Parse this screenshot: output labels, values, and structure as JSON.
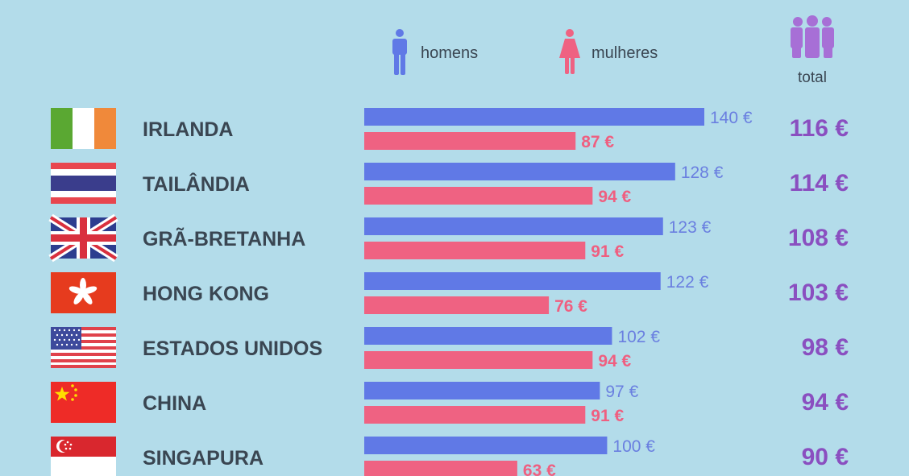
{
  "legend": {
    "men_label": "homens",
    "women_label": "mulheres",
    "total_label": "total",
    "men_icon": "man-icon",
    "women_icon": "woman-icon",
    "total_icon": "group-icon"
  },
  "colors": {
    "men": "#6079e6",
    "women": "#ef6282",
    "total": "#8a4fc0",
    "background": "#b3dcea"
  },
  "chart_data": {
    "type": "bar",
    "categories": [
      "IRLANDA",
      "TAILÂNDIA",
      "GRÃ-BRETANHA",
      "HONG KONG",
      "ESTADOS UNIDOS",
      "CHINA",
      "SINGAPURA"
    ],
    "flags": [
      "ireland-flag-icon",
      "thailand-flag-icon",
      "uk-flag-icon",
      "hong-kong-flag-icon",
      "usa-flag-icon",
      "china-flag-icon",
      "singapore-flag-icon"
    ],
    "series": [
      {
        "name": "homens",
        "values": [
          140,
          128,
          123,
          122,
          102,
          97,
          100
        ],
        "labels": [
          "140 €",
          "128 €",
          "123 €",
          "122 €",
          "102 €",
          "97 €",
          "100 €"
        ]
      },
      {
        "name": "mulheres",
        "values": [
          87,
          94,
          91,
          76,
          94,
          91,
          63
        ],
        "labels": [
          "87 €",
          "94 €",
          "91 €",
          "76 €",
          "94 €",
          "91 €",
          "63 €"
        ]
      }
    ],
    "totals": [
      116,
      114,
      108,
      103,
      98,
      94,
      90
    ],
    "total_labels": [
      "116 €",
      "114 €",
      "108 €",
      "103 €",
      "98 €",
      "94 €",
      "90 €"
    ],
    "xlim": [
      0,
      140
    ],
    "title": "",
    "xlabel": "",
    "ylabel": ""
  }
}
